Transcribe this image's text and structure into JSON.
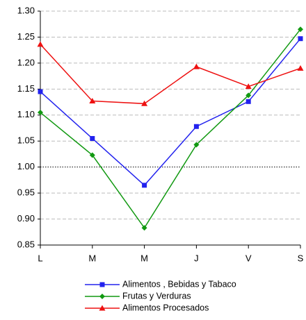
{
  "chart_data": {
    "type": "line",
    "categories": [
      "L",
      "M",
      "M",
      "J",
      "V",
      "S"
    ],
    "series": [
      {
        "name": "Alimentos , Bebidas y Tabaco",
        "color": "#2222ee",
        "marker": "square",
        "values": [
          1.145,
          1.055,
          0.965,
          1.078,
          1.126,
          1.247
        ]
      },
      {
        "name": "Frutas y Verduras",
        "color": "#119911",
        "marker": "diamond",
        "values": [
          1.105,
          1.023,
          0.883,
          1.043,
          1.138,
          1.265
        ]
      },
      {
        "name": "Alimentos Procesados",
        "color": "#ee1111",
        "marker": "triangle",
        "values": [
          1.236,
          1.127,
          1.122,
          1.193,
          1.155,
          1.19
        ]
      }
    ],
    "ylim": [
      0.85,
      1.3
    ],
    "yticks": [
      0.85,
      {
        "value": 0.9,
        "label": "0.90"
      },
      0.95,
      {
        "value": 1,
        "label": "1.00"
      },
      1.05,
      {
        "value": 1.1,
        "label": "1.10"
      },
      1.15,
      {
        "value": 1.2,
        "label": "1.20"
      },
      1.25,
      {
        "value": 1.3,
        "label": "1.30"
      }
    ],
    "grid": true,
    "reference_line": 1,
    "legend": "bottom"
  }
}
